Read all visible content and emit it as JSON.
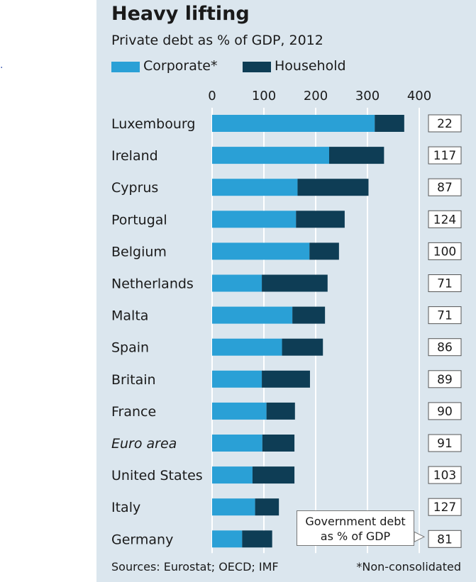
{
  "stray_mark": ".",
  "title": "Heavy lifting",
  "subtitle": "Private debt as % of GDP, 2012",
  "colors": {
    "corporate": "#2aa0d6",
    "household": "#0e3d55",
    "panel": "#dbe6ee",
    "gridline": "#ffffff"
  },
  "legend": [
    {
      "label": "Corporate*",
      "color": "#2aa0d6"
    },
    {
      "label": "Household",
      "color": "#0e3d55"
    }
  ],
  "callout": {
    "line1": "Government debt",
    "line2": "as % of GDP"
  },
  "sources": "Sources: Eurostat; OECD; IMF",
  "footnote": "*Non-consolidated",
  "chart_data": {
    "type": "bar",
    "orientation": "horizontal",
    "stacked": true,
    "title": "Heavy lifting",
    "subtitle": "Private debt as % of GDP, 2012",
    "xlim": [
      0,
      400
    ],
    "xticks": [
      "0",
      "100",
      "200",
      "300",
      "400"
    ],
    "grid": true,
    "legend_position": "top-left",
    "categories": [
      "Luxembourg",
      "Ireland",
      "Cyprus",
      "Portugal",
      "Belgium",
      "Netherlands",
      "Malta",
      "Spain",
      "Britain",
      "France",
      "Euro area",
      "United States",
      "Italy",
      "Germany"
    ],
    "italic_categories": [
      "Euro area"
    ],
    "series": [
      {
        "name": "Corporate*",
        "values": [
          314,
          226,
          165,
          162,
          188,
          96,
          155,
          135,
          96,
          105,
          97,
          78,
          83,
          58
        ]
      },
      {
        "name": "Household",
        "values": [
          57,
          106,
          137,
          94,
          57,
          127,
          63,
          79,
          93,
          55,
          62,
          81,
          46,
          58
        ]
      }
    ],
    "government_debt": [
      "22",
      "117",
      "87",
      "124",
      "100",
      "71",
      "71",
      "86",
      "89",
      "90",
      "91",
      "103",
      "127",
      "81"
    ]
  }
}
